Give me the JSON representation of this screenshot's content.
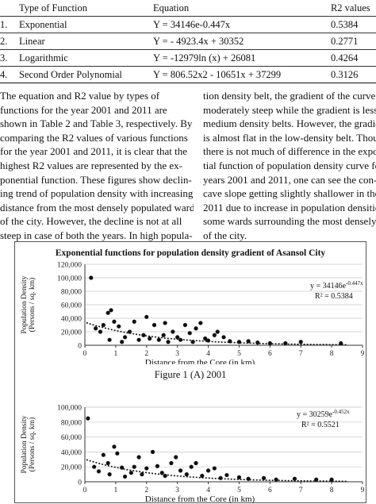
{
  "table": {
    "header": {
      "num": "",
      "type": "Type of Function",
      "equation": "Equation",
      "r2": "R2 values"
    },
    "rows": [
      {
        "num": "1.",
        "type": "Exponential",
        "equation": "Y = 34146e-0.447x",
        "r2": "0.5384"
      },
      {
        "num": "2.",
        "type": "Linear",
        "equation": "Y = - 4923.4x + 30352",
        "r2": "0.2771"
      },
      {
        "num": "3.",
        "type": "Logarithmic",
        "equation": "Y = -12979ln (x) + 26081",
        "r2": "0.4264"
      },
      {
        "num": "4.",
        "type": "Second Order Polynomial",
        "equation": "Y = 806.52x2 - 10651x + 37299",
        "r2": "0.3126"
      }
    ]
  },
  "left_column": [
    "The equation and R2 value by types of",
    "functions for the year 2001 and 2011 are",
    "shown in Table 2 and Table 3, respectively. By",
    "comparing the R2 values of various functions",
    "for the year 2001 and 2011, it is clear that the",
    "highest R2 values are represented by the ex-",
    "ponential function. These figures show declin-",
    "ing trend of population density with increasing",
    "distance from the most densely populated ward",
    "of the city. However, the decline is not at all",
    "steep in case of both the years. In high popula-"
  ],
  "right_column": [
    "tion density belt, the gradient of the curve is",
    "moderately steep while the gradient is less in",
    "medium density belts. However, the gradient",
    "is almost flat in the low-density belt. Though",
    "there is not much of difference in the exponen-",
    "tial function of population density curve for the",
    "years 2001 and 2011, one can see the con-",
    "cave slope getting slightly shallower in the year",
    "2011 due to increase in population densities in",
    "some wards surrounding the most densely populated ward",
    "of the city."
  ],
  "figure": {
    "title": "Exponential functions for population density gradient of Asansol City",
    "caption_a": "Figure 1 (A) 2001"
  },
  "chart_data": [
    {
      "type": "scatter",
      "title": "",
      "xlabel": "Distance from the Core (in km)",
      "ylabel": "Population Density (Persons / sq. km)",
      "xlim": [
        0,
        9
      ],
      "ylim": [
        0,
        120000
      ],
      "xticks": [
        "0",
        "1",
        "2",
        "3",
        "4",
        "5",
        "6",
        "7",
        "8",
        "9"
      ],
      "yticks": [
        "0",
        "20,000",
        "40,000",
        "60,000",
        "80,000",
        "100,000",
        "120,000"
      ],
      "equation_label": "y = 34146e-0.447x",
      "r2_label": "R² = 0.5384",
      "trendline": {
        "a": 34146,
        "b": -0.447
      },
      "x": [
        0.2,
        0.35,
        0.5,
        0.6,
        0.75,
        0.8,
        0.85,
        0.95,
        1.1,
        1.2,
        1.3,
        1.45,
        1.6,
        1.75,
        1.9,
        2.0,
        2.1,
        2.25,
        2.4,
        2.55,
        2.6,
        2.7,
        2.85,
        3.0,
        3.1,
        3.25,
        3.4,
        3.5,
        3.6,
        3.75,
        3.9,
        4.0,
        4.2,
        4.3,
        4.5,
        4.7,
        5.0,
        5.3,
        5.6,
        6.0,
        6.5,
        7.0,
        8.3
      ],
      "y": [
        100000,
        25000,
        20000,
        30000,
        48000,
        8000,
        52000,
        35000,
        28000,
        5000,
        12000,
        20000,
        35000,
        8000,
        15000,
        42000,
        10000,
        30000,
        8000,
        15000,
        33000,
        5000,
        20000,
        12000,
        8000,
        30000,
        18000,
        5000,
        25000,
        33000,
        10000,
        7000,
        15000,
        20000,
        12000,
        6000,
        5000,
        6000,
        4000,
        3000,
        3000,
        5000,
        3000
      ]
    },
    {
      "type": "scatter",
      "title": "",
      "xlabel": "Distance from the Core (in km)",
      "ylabel": "Population Density (Persons / sq. km)",
      "xlim": [
        0,
        9
      ],
      "ylim": [
        0,
        100000
      ],
      "xticks": [
        "0",
        "1",
        "2",
        "3",
        "4",
        "5",
        "6",
        "7",
        "8",
        "9"
      ],
      "yticks": [
        "0",
        "20,000",
        "40,000",
        "60,000",
        "80,000",
        "100,000"
      ],
      "equation_label": "y = 30259e-0.452x",
      "r2_label": "R² = 0.5521",
      "trendline": {
        "a": 30259,
        "b": -0.452
      },
      "x": [
        0.1,
        0.3,
        0.45,
        0.6,
        0.75,
        0.8,
        0.95,
        1.05,
        1.2,
        1.3,
        1.5,
        1.6,
        1.75,
        1.85,
        2.0,
        2.2,
        2.35,
        2.5,
        2.6,
        2.8,
        2.95,
        3.1,
        3.3,
        3.45,
        3.6,
        3.8,
        4.0,
        4.2,
        4.4,
        4.6,
        5.0,
        5.3,
        5.8,
        6.2,
        6.8,
        7.5,
        8.0
      ],
      "y": [
        85000,
        20000,
        14000,
        36000,
        25000,
        10000,
        47000,
        38000,
        19000,
        7000,
        12000,
        20000,
        33000,
        10000,
        18000,
        40000,
        21000,
        12000,
        8000,
        25000,
        33000,
        15000,
        10000,
        20000,
        25000,
        8000,
        15000,
        18000,
        5000,
        9000,
        6000,
        4000,
        5000,
        3000,
        4000,
        3000,
        3000
      ]
    }
  ]
}
